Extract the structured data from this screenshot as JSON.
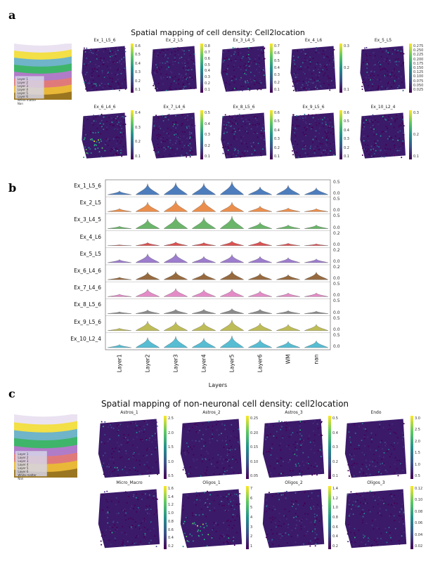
{
  "panels": {
    "a": "a",
    "b": "b",
    "c": "c"
  },
  "panel_a": {
    "title": "Spatial mapping of cell density: Cell2location",
    "legend": [
      "Layer 1",
      "Layer 2",
      "Layer 3",
      "Layer 4",
      "Layer 5",
      "Layer 6",
      "White matter",
      "Nan"
    ],
    "maps": [
      {
        "name": "Ex_1_L5_6",
        "ticks": [
          "0.6",
          "0.5",
          "0.4",
          "0.3",
          "0.2",
          "0.1"
        ]
      },
      {
        "name": "Ex_2_L5",
        "ticks": [
          "0.8",
          "0.7",
          "0.6",
          "0.5",
          "0.4",
          "0.3",
          "0.2",
          "0.1"
        ]
      },
      {
        "name": "Ex_3_L4_5",
        "ticks": [
          "0.7",
          "0.6",
          "0.5",
          "0.4",
          "0.3",
          "0.2",
          "0.1"
        ]
      },
      {
        "name": "Ex_4_L6",
        "ticks": [
          "0.3",
          "0.2",
          "0.1"
        ]
      },
      {
        "name": "Ex_5_L5",
        "ticks": [
          "0.275",
          "0.250",
          "0.225",
          "0.200",
          "0.175",
          "0.150",
          "0.125",
          "0.100",
          "0.075",
          "0.050",
          "0.025"
        ]
      },
      {
        "name": "Ex_6_L4_6",
        "ticks": [
          "0.4",
          "0.3",
          "0.2",
          "0.1"
        ]
      },
      {
        "name": "Ex_7_L4_6",
        "ticks": [
          "0.5",
          "0.4",
          "0.3",
          "0.2",
          "0.1"
        ]
      },
      {
        "name": "Ex_8_L5_6",
        "ticks": [
          "0.6",
          "0.5",
          "0.4",
          "0.3",
          "0.2",
          "0.1"
        ]
      },
      {
        "name": "Ex_9_L5_6",
        "ticks": [
          "0.6",
          "0.5",
          "0.4",
          "0.3",
          "0.2",
          "0.1"
        ]
      },
      {
        "name": "Ex_10_L2_4",
        "ticks": [
          "0.3",
          "0.2",
          "0.1"
        ]
      }
    ]
  },
  "panel_c": {
    "title": "Spatial mapping of non-neuronal cell density: cell2location",
    "legend": [
      "Layer 1",
      "Layer 2",
      "Layer 3",
      "Layer 4",
      "Layer 5",
      "Layer 6",
      "White matter",
      "Nan"
    ],
    "maps": [
      {
        "name": "Astros_1",
        "ticks": [
          "2.5",
          "2.0",
          "1.5",
          "1.0",
          "0.5"
        ]
      },
      {
        "name": "Astros_2",
        "ticks": [
          "0.25",
          "0.20",
          "0.15",
          "0.10",
          "0.05"
        ]
      },
      {
        "name": "Astros_3",
        "ticks": [
          "0.5",
          "0.4",
          "0.3",
          "0.2",
          "0.1"
        ]
      },
      {
        "name": "Endo",
        "ticks": [
          "3.0",
          "2.5",
          "2.0",
          "1.5",
          "1.0",
          "0.5"
        ]
      },
      {
        "name": "Micro_Macro",
        "ticks": [
          "1.6",
          "1.4",
          "1.2",
          "1.0",
          "0.8",
          "0.6",
          "0.4",
          "0.2"
        ]
      },
      {
        "name": "Oligos_1",
        "ticks": [
          "7",
          "6",
          "5",
          "4",
          "3",
          "2",
          "1"
        ]
      },
      {
        "name": "Oligos_2",
        "ticks": [
          "1.4",
          "1.2",
          "1.0",
          "0.8",
          "0.6",
          "0.4",
          "0.2"
        ]
      },
      {
        "name": "Oligos_3",
        "ticks": [
          "0.12",
          "0.10",
          "0.08",
          "0.06",
          "0.04",
          "0.02"
        ]
      }
    ]
  },
  "chart_data": {
    "type": "violin",
    "xlabel": "Layers",
    "categories": [
      "Layer1",
      "Layer2",
      "Layer3",
      "Layer4",
      "Layer5",
      "Layer6",
      "WM",
      "nan"
    ],
    "series": [
      {
        "name": "Ex_1_L5_6",
        "color": "#3a6fb5",
        "values": [
          0.12,
          0.35,
          0.38,
          0.36,
          0.42,
          0.25,
          0.3,
          0.22
        ],
        "yticks": [
          "0.5",
          "0.0"
        ]
      },
      {
        "name": "Ex_2_L5",
        "color": "#e8823a",
        "values": [
          0.1,
          0.3,
          0.35,
          0.38,
          0.3,
          0.18,
          0.12,
          0.1
        ],
        "yticks": [
          "0.5",
          "0.0"
        ]
      },
      {
        "name": "Ex_3_L4_5",
        "color": "#5aae5a",
        "values": [
          0.08,
          0.3,
          0.38,
          0.36,
          0.4,
          0.2,
          0.12,
          0.12
        ],
        "yticks": [
          "0.5",
          "0.0"
        ]
      },
      {
        "name": "Ex_4_L6",
        "color": "#d94040",
        "values": [
          0.03,
          0.1,
          0.12,
          0.1,
          0.15,
          0.14,
          0.08,
          0.06
        ],
        "yticks": [
          "0.2",
          "0.0"
        ]
      },
      {
        "name": "Ex_5_L5",
        "color": "#9370c8",
        "values": [
          0.1,
          0.28,
          0.3,
          0.2,
          0.26,
          0.2,
          0.16,
          0.12
        ],
        "yticks": [
          "0.2",
          "0.0"
        ]
      },
      {
        "name": "Ex_6_L4_6",
        "color": "#8b5a2b",
        "values": [
          0.08,
          0.24,
          0.26,
          0.22,
          0.28,
          0.2,
          0.16,
          0.24
        ],
        "yticks": [
          "0.2",
          "0.0"
        ]
      },
      {
        "name": "Ex_7_L4_6",
        "color": "#e07fc0",
        "values": [
          0.08,
          0.24,
          0.26,
          0.22,
          0.24,
          0.18,
          0.12,
          0.12
        ],
        "yticks": [
          "0.5",
          "0.0"
        ]
      },
      {
        "name": "Ex_8_L5_6",
        "color": "#7f7f7f",
        "values": [
          0.06,
          0.12,
          0.14,
          0.14,
          0.16,
          0.14,
          0.1,
          0.08
        ],
        "yticks": [
          "0.5",
          "0.0"
        ]
      },
      {
        "name": "Ex_9_L5_6",
        "color": "#b8b545",
        "values": [
          0.08,
          0.3,
          0.28,
          0.26,
          0.34,
          0.24,
          0.2,
          0.2
        ],
        "yticks": [
          "0.5",
          "0.0"
        ]
      },
      {
        "name": "Ex_10_L2_4",
        "color": "#45b6cf",
        "values": [
          0.1,
          0.32,
          0.36,
          0.3,
          0.38,
          0.26,
          0.2,
          0.22
        ],
        "yticks": [
          "0.5",
          "0.0"
        ]
      }
    ]
  }
}
